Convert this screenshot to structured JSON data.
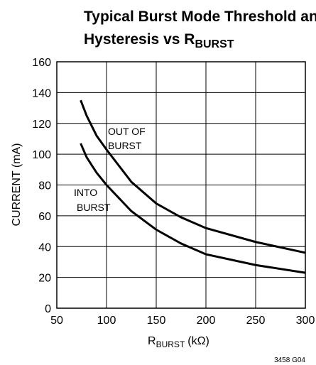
{
  "chart_data": {
    "type": "line",
    "title": {
      "lines": [
        "Typical Burst Mode Threshold and",
        "Hysteresis vs R"
      ],
      "subscript": "BURST"
    },
    "x_label": {
      "text": "R",
      "subscript": "BURST",
      "unit": "(kΩ)"
    },
    "y_label": "CURRENT (mA)",
    "x": [
      74,
      80,
      90,
      100,
      125,
      150,
      175,
      200,
      250,
      300
    ],
    "series": [
      {
        "color": "#000000",
        "values": [
          135,
          125,
          112,
          103,
          82,
          68,
          59,
          52,
          43,
          36
        ]
      },
      {
        "color": "#000000",
        "values": [
          107,
          98,
          88,
          80,
          63,
          51,
          42,
          35,
          28,
          23
        ]
      }
    ],
    "annotations": [
      {
        "lines": [
          "OUT OF",
          "BURST"
        ]
      },
      {
        "lines": [
          "INTO",
          "BURST"
        ]
      }
    ],
    "footnote": "3458 G04",
    "xlim": [
      50,
      300
    ],
    "xticks": [
      50,
      100,
      150,
      200,
      250,
      300
    ],
    "ylim": [
      0,
      160
    ],
    "yticks": [
      0,
      20,
      40,
      60,
      80,
      100,
      120,
      140,
      160
    ],
    "grid": true
  }
}
